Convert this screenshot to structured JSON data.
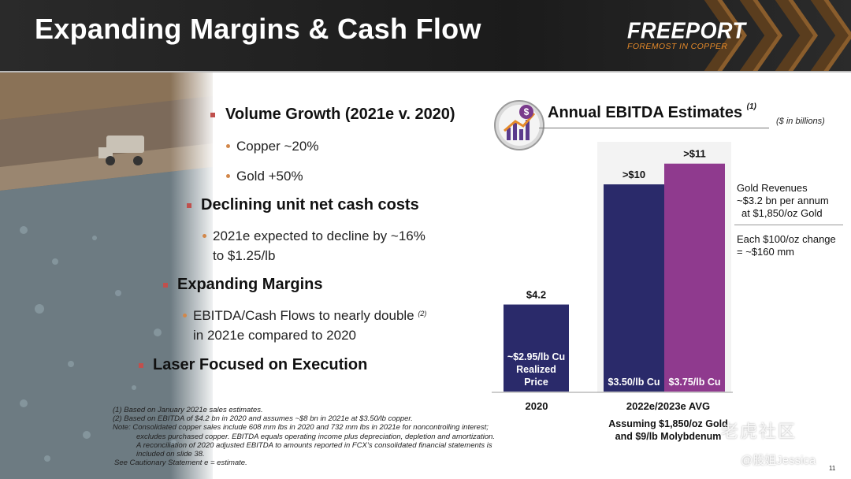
{
  "header": {
    "title": "Expanding Margins & Cash Flow",
    "logo_main": "FREEPORT",
    "logo_sub": "FOREMOST IN COPPER",
    "accent": "#e58a2a"
  },
  "bullets": {
    "volume": "Volume Growth (2021e v. 2020)",
    "copper": "Copper ~20%",
    "gold": "Gold +50%",
    "costs": "Declining unit net cash costs",
    "costs_detail_1": "2021e expected to decline by ~16%",
    "costs_detail_2": "to $1.25/lb",
    "margins": "Expanding Margins",
    "ebitda_1": "EBITDA/Cash Flows to nearly double",
    "ebitda_fn": "(2)",
    "ebitda_2": "in 2021e compared to 2020",
    "laser": "Laser Focused on Execution"
  },
  "notes": {
    "n1": "(1) Based on January 2021e sales estimates.",
    "n2": "(2) Based on EBITDA of $4.2 bn in 2020 and assumes ~$8 bn in 2021e at $3.50/lb copper.",
    "n3": "Note: Consolidated copper sales include 608 mm lbs in 2020 and 732 mm lbs in 2021e for noncontrolling interest;",
    "n4": "excludes purchased copper. EBITDA equals operating income plus depreciation, depletion and amortization.",
    "n5": "A reconciliation of 2020 adjusted EBITDA to amounts reported in FCX’s consolidated financial statements is",
    "n6": "included on slide 38.",
    "n7": "See Cautionary Statement  e = estimate."
  },
  "chart_data": {
    "type": "bar",
    "title": "Annual EBITDA Estimates",
    "title_fn": "(1)",
    "units": "($ in billions)",
    "ylim": [
      0,
      12
    ],
    "grid": false,
    "legend": "none",
    "categories": [
      "2020",
      "2022e/2023e AVG"
    ],
    "bars": [
      {
        "category": "2020",
        "value": 4.2,
        "label": "$4.2",
        "inner": [
          "~$2.95/lb Cu",
          "Realized",
          "Price"
        ],
        "color": "#2a2a6a"
      },
      {
        "category": "2022e/2023e AVG",
        "value": 10,
        "label": ">$10",
        "inner": [
          "$3.50/lb Cu"
        ],
        "color": "#2a2a6a"
      },
      {
        "category": "2022e/2023e AVG",
        "value": 11,
        "label": ">$11",
        "inner": [
          "$3.75/lb Cu"
        ],
        "color": "#8f3a8e"
      }
    ],
    "side_notes": {
      "gold_1": "Gold Revenues",
      "gold_2": "~$3.2 bn per annum",
      "gold_3": "at $1,850/oz Gold",
      "change_1": "Each $100/oz change",
      "change_2": "= ~$160 mm"
    },
    "assumption_1": "Assuming $1,850/oz Gold",
    "assumption_2": "and $9/lb Molybdenum"
  },
  "watermark": {
    "brand": "老虎社区",
    "user": "@股姐Jessica"
  },
  "page_number": "11"
}
